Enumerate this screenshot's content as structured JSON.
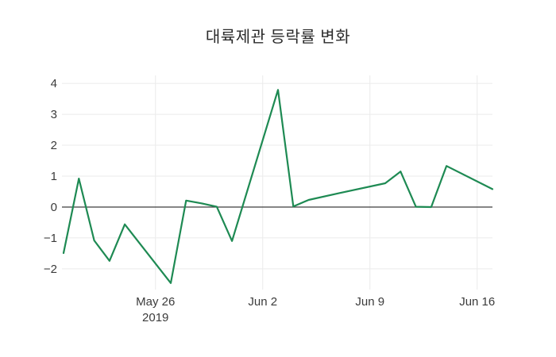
{
  "chart": {
    "title": "대륙제관 등락률 변화"
  },
  "chart_data": {
    "type": "line",
    "title": "대륙제관 등락률 변화",
    "xlabel": "",
    "ylabel": "",
    "x": [
      "2019-05-20",
      "2019-05-21",
      "2019-05-22",
      "2019-05-23",
      "2019-05-24",
      "2019-05-27",
      "2019-05-28",
      "2019-05-29",
      "2019-05-30",
      "2019-05-31",
      "2019-06-03",
      "2019-06-04",
      "2019-06-05",
      "2019-06-07",
      "2019-06-10",
      "2019-06-11",
      "2019-06-12",
      "2019-06-13",
      "2019-06-14",
      "2019-06-17"
    ],
    "series": [
      {
        "name": "등락률",
        "values": [
          -1.49,
          0.92,
          -1.08,
          -1.74,
          -0.56,
          -2.46,
          0.21,
          0.12,
          0.01,
          -1.1,
          3.79,
          0.02,
          0.23,
          0.45,
          0.77,
          1.15,
          0.01,
          0,
          1.33,
          0.58
        ]
      }
    ],
    "xlim": [
      "2019-05-20",
      "2019-06-17"
    ],
    "ylim": [
      -2.67,
      4.26
    ],
    "xticks": [
      {
        "date": "2019-05-26",
        "label": "May 26",
        "sublabel": "2019"
      },
      {
        "date": "2019-06-02",
        "label": "Jun 2",
        "sublabel": ""
      },
      {
        "date": "2019-06-09",
        "label": "Jun 9",
        "sublabel": ""
      },
      {
        "date": "2019-06-16",
        "label": "Jun 16",
        "sublabel": ""
      }
    ],
    "yticks": [
      {
        "value": 4,
        "label": "4"
      },
      {
        "value": 3,
        "label": "3"
      },
      {
        "value": 2,
        "label": "2"
      },
      {
        "value": 1,
        "label": "1"
      },
      {
        "value": 0,
        "label": "0"
      },
      {
        "value": -1,
        "label": "−1"
      },
      {
        "value": -2,
        "label": "−2"
      }
    ],
    "grid": true,
    "legend": "none",
    "zeroline": true,
    "colors": {
      "line": "#1e8a53",
      "grid": "#ebebeb",
      "zeroline": "#3d3d3d",
      "tick_text": "#3b3b3b",
      "background": "#ffffff"
    }
  }
}
